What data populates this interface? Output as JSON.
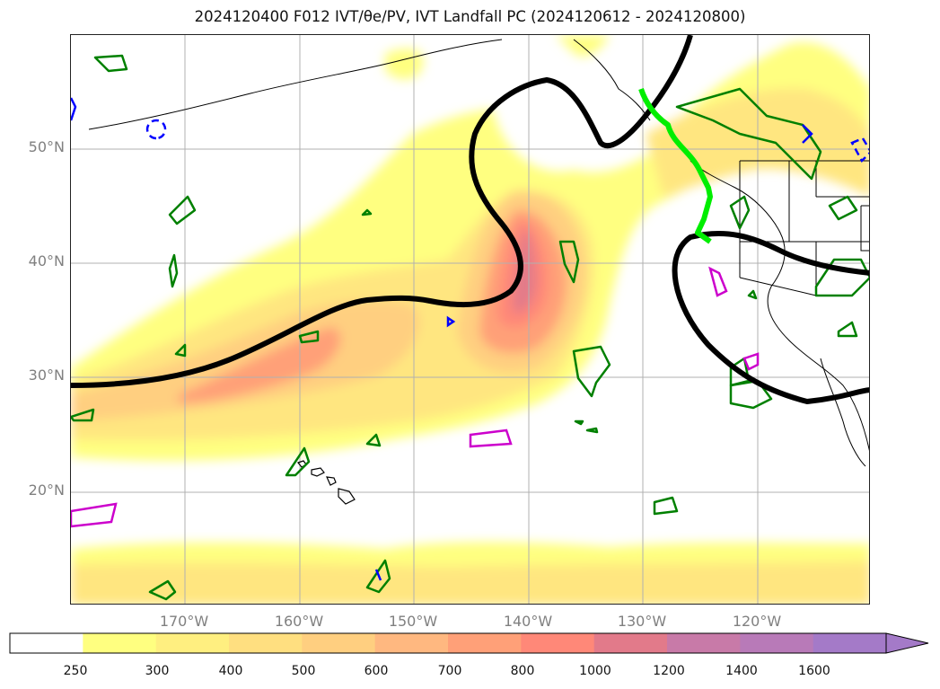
{
  "title": "2024120400 F012 IVT/θe/PV, IVT Landfall PC (2024120612 - 2024120800)",
  "map": {
    "lat_labels": [
      "50°N",
      "40°N",
      "30°N",
      "20°N"
    ],
    "lon_labels": [
      "170°W",
      "160°W",
      "150°W",
      "140°W",
      "130°W",
      "120°W"
    ],
    "gridlines": true,
    "colors": {
      "landfall_pc_line": "#000000",
      "landfall_segment": "#00ee00",
      "coastline": "#000000",
      "pv_contour_green": "#008000",
      "pv_contour_blue": "#0000ff",
      "pv_contour_magenta": "#cc00cc",
      "grid": "#b0b0b0"
    }
  },
  "colorbar": {
    "ticks": [
      "250",
      "300",
      "400",
      "500",
      "600",
      "700",
      "800",
      "1000",
      "1200",
      "1400",
      "1600"
    ],
    "colors": [
      "#ffffff",
      "#ffff80",
      "#ffef80",
      "#ffdf80",
      "#ffcf80",
      "#ffb880",
      "#ffa078",
      "#ff8878",
      "#e27a8a",
      "#c87aa8",
      "#b87ab8",
      "#a47ac8"
    ],
    "extend": "max"
  }
}
